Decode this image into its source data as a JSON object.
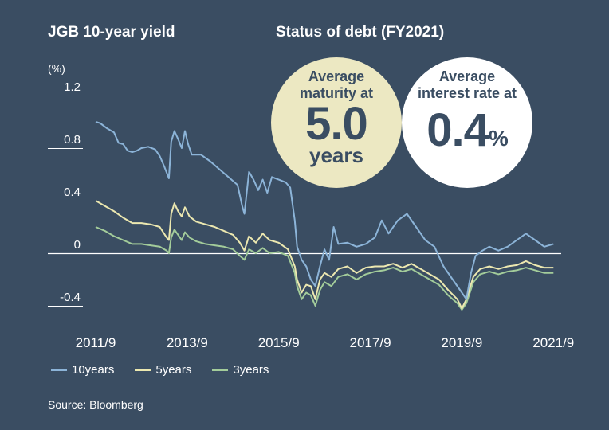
{
  "titles": {
    "left": "JGB 10-year yield",
    "right": "Status of debt (FY2021)"
  },
  "unit_label": "(%)",
  "circles": {
    "maturity": {
      "line1": "Average",
      "line2": "maturity at",
      "value": "5.0",
      "unit": "years"
    },
    "interest": {
      "line1": "Average",
      "line2": "interest rate at",
      "value": "0.4",
      "unit": "%"
    }
  },
  "source": "Source: Bloomberg",
  "colors": {
    "background": "#3a4d62",
    "10years": "#8cb4d8",
    "5years": "#ece8b0",
    "3years": "#a3cc9a",
    "circle_maturity": "#ece8c2",
    "circle_interest": "#ffffff"
  },
  "chart_data": {
    "type": "line",
    "title": "JGB 10-year yield",
    "ylabel": "(%)",
    "xlim": [
      2011.7,
      2021.8
    ],
    "ylim": [
      -0.4,
      1.2
    ],
    "y_ticks": [
      {
        "value": 1.2,
        "label": "1.2"
      },
      {
        "value": 0.8,
        "label": "0.8"
      },
      {
        "value": 0.4,
        "label": "0.4"
      },
      {
        "value": 0,
        "label": "0"
      },
      {
        "value": -0.4,
        "label": "-0.4"
      }
    ],
    "x_ticks": [
      {
        "value": 2011.7,
        "label": "2011/9"
      },
      {
        "value": 2013.7,
        "label": "2013/9"
      },
      {
        "value": 2015.7,
        "label": "2015/9"
      },
      {
        "value": 2017.7,
        "label": "2017/9"
      },
      {
        "value": 2019.7,
        "label": "2019/9"
      },
      {
        "value": 2021.7,
        "label": "2021/9"
      }
    ],
    "grid": false,
    "legend": "bottom",
    "series": [
      {
        "name": "10years",
        "points": [
          [
            2011.7,
            1.0
          ],
          [
            2011.8,
            0.99
          ],
          [
            2011.95,
            0.95
          ],
          [
            2012.1,
            0.92
          ],
          [
            2012.2,
            0.84
          ],
          [
            2012.3,
            0.83
          ],
          [
            2012.4,
            0.78
          ],
          [
            2012.5,
            0.77
          ],
          [
            2012.6,
            0.78
          ],
          [
            2012.7,
            0.8
          ],
          [
            2012.85,
            0.81
          ],
          [
            2013.0,
            0.79
          ],
          [
            2013.1,
            0.74
          ],
          [
            2013.2,
            0.66
          ],
          [
            2013.3,
            0.57
          ],
          [
            2013.35,
            0.85
          ],
          [
            2013.42,
            0.93
          ],
          [
            2013.5,
            0.87
          ],
          [
            2013.58,
            0.8
          ],
          [
            2013.65,
            0.93
          ],
          [
            2013.72,
            0.83
          ],
          [
            2013.8,
            0.75
          ],
          [
            2014.0,
            0.75
          ],
          [
            2014.2,
            0.7
          ],
          [
            2014.4,
            0.64
          ],
          [
            2014.6,
            0.58
          ],
          [
            2014.8,
            0.52
          ],
          [
            2014.9,
            0.36
          ],
          [
            2014.95,
            0.3
          ],
          [
            2015.05,
            0.62
          ],
          [
            2015.15,
            0.56
          ],
          [
            2015.25,
            0.48
          ],
          [
            2015.35,
            0.56
          ],
          [
            2015.45,
            0.46
          ],
          [
            2015.55,
            0.58
          ],
          [
            2015.7,
            0.56
          ],
          [
            2015.85,
            0.54
          ],
          [
            2015.95,
            0.5
          ],
          [
            2016.05,
            0.25
          ],
          [
            2016.1,
            0.05
          ],
          [
            2016.2,
            -0.05
          ],
          [
            2016.3,
            -0.1
          ],
          [
            2016.4,
            -0.2
          ],
          [
            2016.5,
            -0.25
          ],
          [
            2016.6,
            -0.1
          ],
          [
            2016.7,
            0.03
          ],
          [
            2016.8,
            -0.05
          ],
          [
            2016.9,
            0.2
          ],
          [
            2017.0,
            0.07
          ],
          [
            2017.2,
            0.08
          ],
          [
            2017.4,
            0.05
          ],
          [
            2017.6,
            0.07
          ],
          [
            2017.8,
            0.12
          ],
          [
            2017.95,
            0.25
          ],
          [
            2018.1,
            0.15
          ],
          [
            2018.3,
            0.25
          ],
          [
            2018.5,
            0.3
          ],
          [
            2018.7,
            0.2
          ],
          [
            2018.9,
            0.1
          ],
          [
            2019.1,
            0.05
          ],
          [
            2019.3,
            -0.1
          ],
          [
            2019.5,
            -0.2
          ],
          [
            2019.7,
            -0.3
          ],
          [
            2019.8,
            -0.35
          ],
          [
            2019.9,
            -0.15
          ],
          [
            2020.0,
            -0.02
          ],
          [
            2020.15,
            0.02
          ],
          [
            2020.3,
            0.05
          ],
          [
            2020.5,
            0.02
          ],
          [
            2020.7,
            0.05
          ],
          [
            2020.9,
            0.1
          ],
          [
            2021.1,
            0.15
          ],
          [
            2021.3,
            0.1
          ],
          [
            2021.5,
            0.05
          ],
          [
            2021.7,
            0.07
          ]
        ]
      },
      {
        "name": "5years",
        "points": [
          [
            2011.7,
            0.4
          ],
          [
            2011.9,
            0.36
          ],
          [
            2012.1,
            0.32
          ],
          [
            2012.3,
            0.27
          ],
          [
            2012.5,
            0.23
          ],
          [
            2012.7,
            0.23
          ],
          [
            2012.9,
            0.22
          ],
          [
            2013.1,
            0.2
          ],
          [
            2013.25,
            0.12
          ],
          [
            2013.3,
            0.1
          ],
          [
            2013.35,
            0.3
          ],
          [
            2013.42,
            0.38
          ],
          [
            2013.5,
            0.32
          ],
          [
            2013.58,
            0.28
          ],
          [
            2013.65,
            0.35
          ],
          [
            2013.75,
            0.28
          ],
          [
            2013.9,
            0.24
          ],
          [
            2014.1,
            0.22
          ],
          [
            2014.3,
            0.2
          ],
          [
            2014.5,
            0.17
          ],
          [
            2014.7,
            0.14
          ],
          [
            2014.85,
            0.08
          ],
          [
            2014.95,
            0.02
          ],
          [
            2015.05,
            0.13
          ],
          [
            2015.2,
            0.08
          ],
          [
            2015.35,
            0.15
          ],
          [
            2015.5,
            0.1
          ],
          [
            2015.7,
            0.08
          ],
          [
            2015.9,
            0.03
          ],
          [
            2016.05,
            -0.1
          ],
          [
            2016.1,
            -0.2
          ],
          [
            2016.2,
            -0.3
          ],
          [
            2016.3,
            -0.24
          ],
          [
            2016.4,
            -0.25
          ],
          [
            2016.5,
            -0.35
          ],
          [
            2016.6,
            -0.2
          ],
          [
            2016.7,
            -0.15
          ],
          [
            2016.85,
            -0.18
          ],
          [
            2017.0,
            -0.12
          ],
          [
            2017.2,
            -0.1
          ],
          [
            2017.4,
            -0.15
          ],
          [
            2017.6,
            -0.11
          ],
          [
            2017.8,
            -0.1
          ],
          [
            2018.0,
            -0.1
          ],
          [
            2018.2,
            -0.08
          ],
          [
            2018.4,
            -0.11
          ],
          [
            2018.6,
            -0.08
          ],
          [
            2018.8,
            -0.12
          ],
          [
            2019.0,
            -0.16
          ],
          [
            2019.2,
            -0.2
          ],
          [
            2019.4,
            -0.28
          ],
          [
            2019.6,
            -0.35
          ],
          [
            2019.7,
            -0.42
          ],
          [
            2019.8,
            -0.35
          ],
          [
            2019.95,
            -0.18
          ],
          [
            2020.1,
            -0.12
          ],
          [
            2020.3,
            -0.1
          ],
          [
            2020.5,
            -0.12
          ],
          [
            2020.7,
            -0.1
          ],
          [
            2020.9,
            -0.09
          ],
          [
            2021.1,
            -0.06
          ],
          [
            2021.3,
            -0.09
          ],
          [
            2021.5,
            -0.11
          ],
          [
            2021.7,
            -0.11
          ]
        ]
      },
      {
        "name": "3years",
        "points": [
          [
            2011.7,
            0.2
          ],
          [
            2011.9,
            0.17
          ],
          [
            2012.1,
            0.13
          ],
          [
            2012.3,
            0.1
          ],
          [
            2012.5,
            0.07
          ],
          [
            2012.7,
            0.07
          ],
          [
            2012.9,
            0.06
          ],
          [
            2013.1,
            0.05
          ],
          [
            2013.25,
            0.02
          ],
          [
            2013.3,
            0.0
          ],
          [
            2013.35,
            0.12
          ],
          [
            2013.42,
            0.18
          ],
          [
            2013.5,
            0.14
          ],
          [
            2013.58,
            0.1
          ],
          [
            2013.65,
            0.16
          ],
          [
            2013.75,
            0.12
          ],
          [
            2013.9,
            0.09
          ],
          [
            2014.1,
            0.07
          ],
          [
            2014.3,
            0.06
          ],
          [
            2014.5,
            0.05
          ],
          [
            2014.7,
            0.03
          ],
          [
            2014.85,
            -0.02
          ],
          [
            2014.95,
            -0.05
          ],
          [
            2015.05,
            0.03
          ],
          [
            2015.2,
            0.0
          ],
          [
            2015.35,
            0.04
          ],
          [
            2015.5,
            0.0
          ],
          [
            2015.7,
            0.01
          ],
          [
            2015.9,
            -0.02
          ],
          [
            2016.05,
            -0.15
          ],
          [
            2016.1,
            -0.25
          ],
          [
            2016.2,
            -0.35
          ],
          [
            2016.3,
            -0.3
          ],
          [
            2016.4,
            -0.32
          ],
          [
            2016.5,
            -0.4
          ],
          [
            2016.6,
            -0.28
          ],
          [
            2016.7,
            -0.22
          ],
          [
            2016.85,
            -0.25
          ],
          [
            2017.0,
            -0.18
          ],
          [
            2017.2,
            -0.16
          ],
          [
            2017.4,
            -0.2
          ],
          [
            2017.6,
            -0.16
          ],
          [
            2017.8,
            -0.14
          ],
          [
            2018.0,
            -0.13
          ],
          [
            2018.2,
            -0.11
          ],
          [
            2018.4,
            -0.14
          ],
          [
            2018.6,
            -0.12
          ],
          [
            2018.8,
            -0.16
          ],
          [
            2019.0,
            -0.2
          ],
          [
            2019.2,
            -0.24
          ],
          [
            2019.4,
            -0.32
          ],
          [
            2019.6,
            -0.38
          ],
          [
            2019.7,
            -0.43
          ],
          [
            2019.8,
            -0.38
          ],
          [
            2019.95,
            -0.22
          ],
          [
            2020.1,
            -0.16
          ],
          [
            2020.3,
            -0.14
          ],
          [
            2020.5,
            -0.16
          ],
          [
            2020.7,
            -0.14
          ],
          [
            2020.9,
            -0.13
          ],
          [
            2021.1,
            -0.11
          ],
          [
            2021.3,
            -0.13
          ],
          [
            2021.5,
            -0.15
          ],
          [
            2021.7,
            -0.15
          ]
        ]
      }
    ]
  }
}
